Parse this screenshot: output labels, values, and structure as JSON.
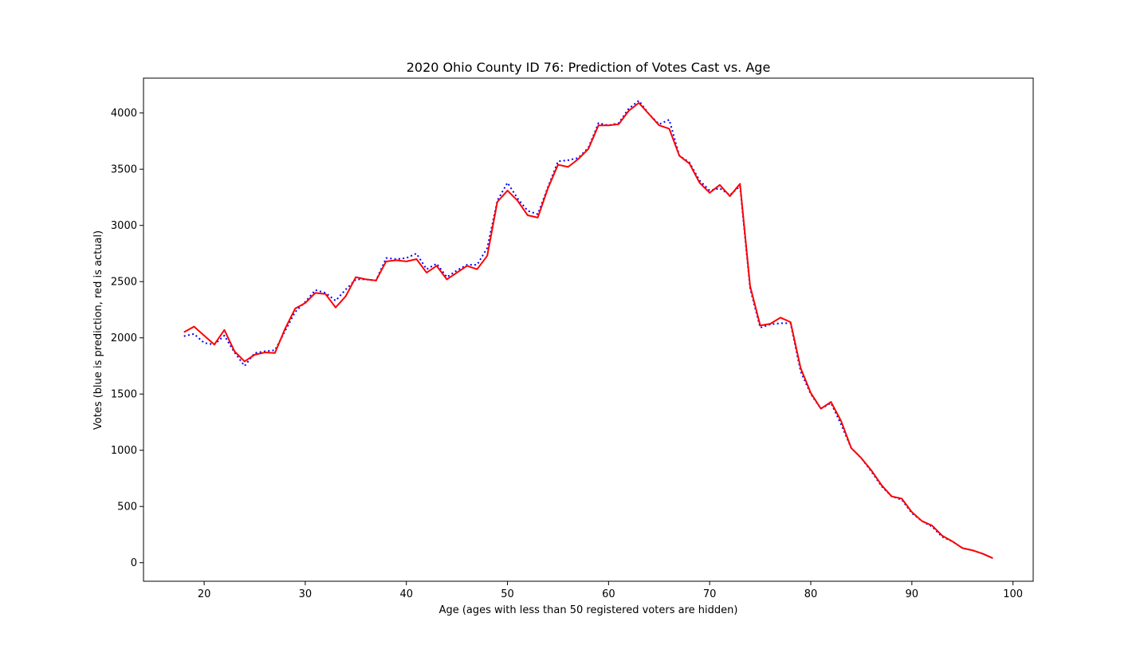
{
  "chart_data": {
    "type": "line",
    "title": "2020 Ohio County ID 76: Prediction of Votes Cast vs. Age",
    "xlabel": "Age (ages with less than 50 registered voters are hidden)",
    "ylabel": "Votes (blue is prediction, red is actual)",
    "xlim": [
      14,
      102
    ],
    "ylim": [
      -165,
      4310
    ],
    "xticks": [
      20,
      30,
      40,
      50,
      60,
      70,
      80,
      90,
      100
    ],
    "yticks": [
      0,
      500,
      1000,
      1500,
      2000,
      2500,
      3000,
      3500,
      4000
    ],
    "x": [
      18,
      19,
      20,
      21,
      22,
      23,
      24,
      25,
      26,
      27,
      28,
      29,
      30,
      31,
      32,
      33,
      34,
      35,
      36,
      37,
      38,
      39,
      40,
      41,
      42,
      43,
      44,
      45,
      46,
      47,
      48,
      49,
      50,
      51,
      52,
      53,
      54,
      55,
      56,
      57,
      58,
      59,
      60,
      61,
      62,
      63,
      64,
      65,
      66,
      67,
      68,
      69,
      70,
      71,
      72,
      73,
      74,
      75,
      76,
      77,
      78,
      79,
      80,
      81,
      82,
      83,
      84,
      85,
      86,
      87,
      88,
      89,
      90,
      91,
      92,
      93,
      94,
      95,
      96,
      97,
      98
    ],
    "series": [
      {
        "name": "prediction",
        "color": "#0000ff",
        "style": "dotted",
        "values": [
          2015,
          2035,
          1955,
          1940,
          2020,
          1870,
          1750,
          1865,
          1880,
          1890,
          2060,
          2230,
          2320,
          2425,
          2400,
          2330,
          2430,
          2520,
          2520,
          2510,
          2710,
          2700,
          2710,
          2750,
          2610,
          2660,
          2540,
          2600,
          2650,
          2650,
          2800,
          3220,
          3380,
          3240,
          3130,
          3100,
          3340,
          3570,
          3580,
          3600,
          3690,
          3910,
          3890,
          3910,
          4040,
          4110,
          3990,
          3900,
          3940,
          3620,
          3560,
          3400,
          3310,
          3330,
          3270,
          3350,
          2440,
          2090,
          2120,
          2130,
          2130,
          1700,
          1500,
          1370,
          1420,
          1230,
          1020,
          930,
          810,
          680,
          590,
          560,
          440,
          370,
          320,
          230,
          190,
          130,
          110,
          80,
          40
        ]
      },
      {
        "name": "actual",
        "color": "#ff0000",
        "style": "solid",
        "values": [
          2050,
          2100,
          2020,
          1940,
          2070,
          1880,
          1790,
          1850,
          1870,
          1865,
          2080,
          2260,
          2310,
          2400,
          2390,
          2270,
          2370,
          2540,
          2520,
          2510,
          2680,
          2690,
          2680,
          2700,
          2580,
          2640,
          2520,
          2580,
          2640,
          2610,
          2730,
          3210,
          3310,
          3220,
          3090,
          3070,
          3330,
          3540,
          3520,
          3590,
          3680,
          3890,
          3890,
          3900,
          4020,
          4090,
          3990,
          3890,
          3860,
          3620,
          3550,
          3380,
          3290,
          3360,
          3260,
          3370,
          2460,
          2110,
          2125,
          2180,
          2140,
          1730,
          1510,
          1370,
          1430,
          1260,
          1020,
          930,
          820,
          690,
          590,
          570,
          450,
          370,
          330,
          240,
          190,
          130,
          110,
          80,
          40
        ]
      }
    ],
    "grid": false,
    "legend": "none"
  }
}
